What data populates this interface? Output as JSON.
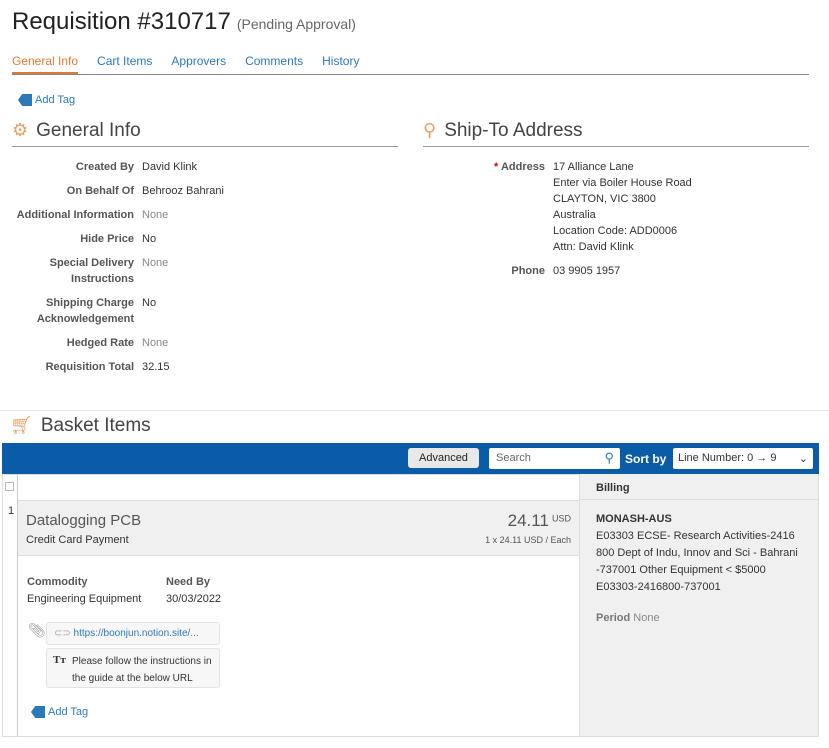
{
  "header": {
    "title": "Requisition #310717",
    "status": "(Pending Approval)"
  },
  "tabs": [
    "General Info",
    "Cart Items",
    "Approvers",
    "Comments",
    "History"
  ],
  "add_tag": "Add Tag",
  "general": {
    "title": "General Info",
    "fields": [
      {
        "label": "Created By",
        "value": "David Klink"
      },
      {
        "label": "On Behalf Of",
        "value": "Behrooz Bahrani"
      },
      {
        "label": "Additional Information",
        "value": "None"
      },
      {
        "label": "Hide Price",
        "value": "No"
      },
      {
        "label": "Special Delivery Instructions",
        "value": "None"
      },
      {
        "label": "Shipping Charge Acknowledgement",
        "value": "No"
      },
      {
        "label": "Hedged Rate",
        "value": "None"
      },
      {
        "label": "Requisition Total",
        "value": "32.15"
      }
    ]
  },
  "shipto": {
    "title": "Ship-To Address",
    "address_label": "Address",
    "address_lines": [
      "17 Alliance Lane",
      "Enter via Boiler House Road",
      "CLAYTON, VIC 3800",
      "Australia",
      "Location Code: ADD0006",
      "Attn: David Klink"
    ],
    "phone_label": "Phone",
    "phone": "03 9905 1957"
  },
  "basket": {
    "title": "Basket Items",
    "advanced": "Advanced",
    "search_placeholder": "Search",
    "sort_label": "Sort by",
    "sort_value": "Line Number: 0 → 9",
    "billing_header": "Billing",
    "item": {
      "line": "1",
      "name": "Datalogging PCB",
      "payment": "Credit Card Payment",
      "price": "24.11",
      "currency": "USD",
      "unit": "1 x 24.11 USD / Each",
      "commodity_label": "Commodity",
      "commodity": "Engineering Equipment",
      "needby_label": "Need By",
      "needby": "30/03/2022",
      "link": "https://boonjun.notion.site/...",
      "note": "Please follow the instructions in the guide at the below URL",
      "add_tag": "Add Tag",
      "billing_code": "MONASH-AUS",
      "billing_lines": [
        "E03303 ECSE- Research Activities-2416",
        "800 Dept of Indu, Innov and Sci - Bahrani",
        "-737001 Other Equipment < $5000",
        "E03303-2416800-737001"
      ],
      "period_label": "Period",
      "period": "None"
    }
  }
}
